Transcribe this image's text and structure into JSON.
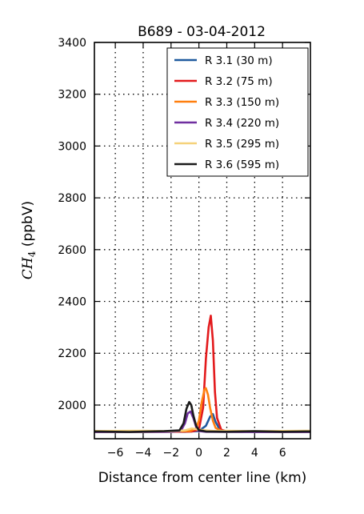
{
  "chart_data": {
    "type": "line",
    "title": "B689 - 03-04-2012",
    "xlabel": "Distance from center line (km)",
    "ylabel": "CH",
    "ylabel_sub": "4",
    "ylabel_unit": " (ppbV)",
    "xlim": [
      -7.5,
      8.0
    ],
    "ylim": [
      1870,
      3400
    ],
    "xticks": [
      -6,
      -4,
      -2,
      0,
      2,
      4,
      6
    ],
    "xtick_labels": [
      "−6",
      "−4",
      "−2",
      "0",
      "2",
      "4",
      "6"
    ],
    "yticks": [
      2000,
      2200,
      2400,
      2600,
      2800,
      3000,
      3200,
      3400
    ],
    "ytick_labels": [
      "2000",
      "2200",
      "2400",
      "2600",
      "2800",
      "3000",
      "3200",
      "3400"
    ],
    "grid": true,
    "legend_position": "top-right",
    "series": [
      {
        "name": "R 3.1 (30 m)",
        "color": "#1f5a9e",
        "x": [
          -7.5,
          -3,
          -1,
          0,
          0.5,
          0.8,
          1.0,
          1.2,
          1.5,
          2.0,
          4,
          8.0
        ],
        "y": [
          1897,
          1898,
          1897,
          1900,
          1920,
          1955,
          1965,
          1935,
          1905,
          1898,
          1897,
          1897
        ]
      },
      {
        "name": "R 3.2 (75 m)",
        "color": "#e31a1c",
        "x": [
          -7.5,
          -2,
          -0.5,
          0,
          0.3,
          0.5,
          0.7,
          0.85,
          1.0,
          1.15,
          1.3,
          1.6,
          2.0,
          4,
          8.0
        ],
        "y": [
          1897,
          1897,
          1898,
          1905,
          1990,
          2180,
          2300,
          2345,
          2250,
          2050,
          1950,
          1905,
          1898,
          1897,
          1897
        ]
      },
      {
        "name": "R 3.3 (150 m)",
        "color": "#ff7f0e",
        "x": [
          -7.5,
          -2,
          -0.6,
          -0.2,
          0,
          0.2,
          0.4,
          0.5,
          0.65,
          0.8,
          1.0,
          1.2,
          1.6,
          2.5,
          5,
          8.0
        ],
        "y": [
          1899,
          1898,
          1900,
          1910,
          1940,
          2010,
          2060,
          2065,
          2040,
          1990,
          1940,
          1912,
          1900,
          1898,
          1898,
          1899
        ]
      },
      {
        "name": "R 3.4 (220 m)",
        "color": "#7030a0",
        "x": [
          -7.5,
          -2,
          -1.3,
          -1.0,
          -0.8,
          -0.6,
          -0.4,
          -0.2,
          0,
          0.5,
          3,
          8.0
        ],
        "y": [
          1896,
          1897,
          1900,
          1930,
          1968,
          1975,
          1950,
          1915,
          1900,
          1897,
          1896,
          1896
        ]
      },
      {
        "name": "R 3.5 (295 m)",
        "color": "#f5d27a",
        "x": [
          -7.5,
          -4,
          -2,
          -1,
          -0.5,
          0,
          0.5,
          1,
          2,
          4,
          6,
          8.0
        ],
        "y": [
          1900,
          1901,
          1899,
          1902,
          1910,
          1905,
          1902,
          1900,
          1901,
          1899,
          1900,
          1901
        ]
      },
      {
        "name": "R 3.6 (595 m)",
        "color": "#1a1a1a",
        "x": [
          -7.5,
          -5,
          -2.5,
          -1.4,
          -1.1,
          -0.9,
          -0.7,
          -0.55,
          -0.4,
          -0.2,
          0,
          0.5,
          2,
          4,
          6,
          8.0
        ],
        "y": [
          1898,
          1896,
          1899,
          1902,
          1930,
          1985,
          2012,
          2000,
          1960,
          1920,
          1903,
          1898,
          1897,
          1899,
          1897,
          1898
        ]
      }
    ]
  }
}
